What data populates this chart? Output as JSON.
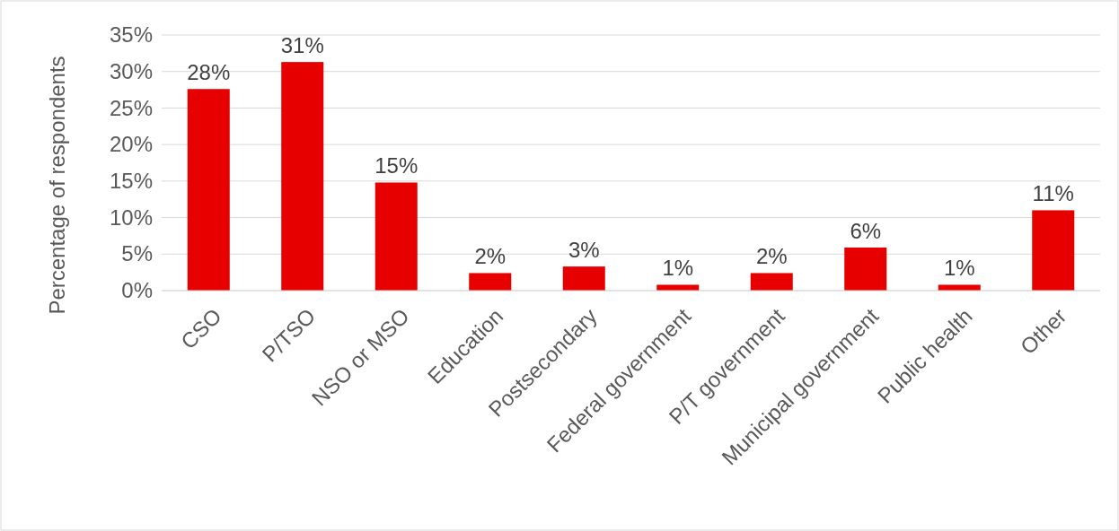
{
  "chart_data": {
    "type": "bar",
    "ylabel": "Percentage of respondents",
    "categories": [
      "CSO",
      "P/TSO",
      "NSO or MSO",
      "Education",
      "Postsecondary",
      "Federal government",
      "P/T government",
      "Municipal government",
      "Public health",
      "Other"
    ],
    "values": [
      27.6,
      31.3,
      14.8,
      2.4,
      3.3,
      0.8,
      2.4,
      5.9,
      0.8,
      11
    ],
    "value_labels": [
      "28%",
      "31%",
      "15%",
      "2%",
      "3%",
      "1%",
      "2%",
      "6%",
      "1%",
      "11%"
    ],
    "color": "#e60000",
    "ylim": [
      0,
      35
    ],
    "yticks": [
      {
        "value": 0,
        "label": "0%"
      },
      {
        "value": 5,
        "label": "5%"
      },
      {
        "value": 10,
        "label": "10%"
      },
      {
        "value": 15,
        "label": "15%"
      },
      {
        "value": 20,
        "label": "20%"
      },
      {
        "value": 25,
        "label": "25%"
      },
      {
        "value": 30,
        "label": "30%"
      },
      {
        "value": 35,
        "label": "35%"
      }
    ],
    "grid": "y"
  }
}
